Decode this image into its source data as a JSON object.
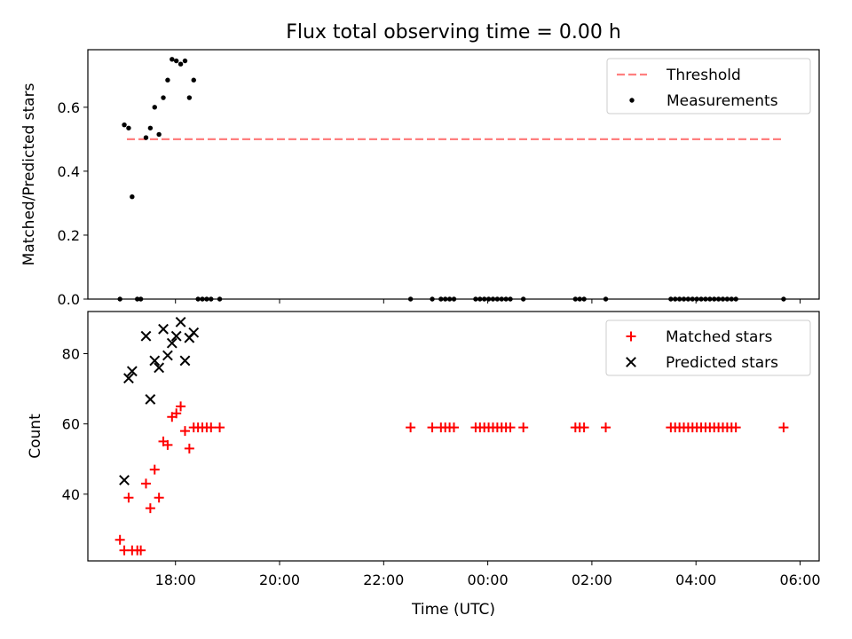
{
  "chart_data": {
    "title": "Flux total observing time = 0.00 h",
    "xlabel": "Time (UTC)",
    "x_unit": "UTC time (HH:MM); values after 24:00 are times on the following day",
    "xlim": [
      "16:19",
      "30:22"
    ],
    "xticks": [
      {
        "value": "18:00",
        "label": "18:00"
      },
      {
        "value": "20:00",
        "label": "20:00"
      },
      {
        "value": "22:00",
        "label": "22:00"
      },
      {
        "value": "24:00",
        "label": "00:00"
      },
      {
        "value": "26:00",
        "label": "02:00"
      },
      {
        "value": "28:00",
        "label": "04:00"
      },
      {
        "value": "30:00",
        "label": "06:00"
      }
    ],
    "panels": [
      {
        "type": "line+scatter",
        "ylabel": "Matched/Predicted stars",
        "ylim": [
          0,
          0.78
        ],
        "yticks": [
          0.0,
          0.2,
          0.4,
          0.6
        ],
        "ytick_labels": [
          "0.0",
          "0.2",
          "0.4",
          "0.6"
        ],
        "legend_position": "upper right",
        "series": [
          {
            "name": "Threshold",
            "kind": "line",
            "style": "dashed",
            "color": "#ff7f7f",
            "points": [
              {
                "x": "17:04",
                "y": 0.5
              },
              {
                "x": "29:38",
                "y": 0.5
              }
            ]
          },
          {
            "name": "Measurements",
            "kind": "scatter",
            "marker": "dot",
            "color": "#000000",
            "points": [
              {
                "x": "16:56",
                "y": 0.0
              },
              {
                "x": "17:01",
                "y": 0.545
              },
              {
                "x": "17:06",
                "y": 0.535
              },
              {
                "x": "17:10",
                "y": 0.32
              },
              {
                "x": "17:16",
                "y": 0.0
              },
              {
                "x": "17:20",
                "y": 0.0
              },
              {
                "x": "17:26",
                "y": 0.505
              },
              {
                "x": "17:31",
                "y": 0.535
              },
              {
                "x": "17:36",
                "y": 0.6
              },
              {
                "x": "17:41",
                "y": 0.515
              },
              {
                "x": "17:46",
                "y": 0.63
              },
              {
                "x": "17:51",
                "y": 0.685
              },
              {
                "x": "17:56",
                "y": 0.75
              },
              {
                "x": "18:01",
                "y": 0.745
              },
              {
                "x": "18:06",
                "y": 0.735
              },
              {
                "x": "18:11",
                "y": 0.745
              },
              {
                "x": "18:16",
                "y": 0.63
              },
              {
                "x": "18:21",
                "y": 0.685
              },
              {
                "x": "18:26",
                "y": 0.0
              },
              {
                "x": "18:31",
                "y": 0.0
              },
              {
                "x": "18:36",
                "y": 0.0
              },
              {
                "x": "18:41",
                "y": 0.0
              },
              {
                "x": "18:51",
                "y": 0.0
              },
              {
                "x": "22:31",
                "y": 0.0
              },
              {
                "x": "22:56",
                "y": 0.0
              },
              {
                "x": "23:06",
                "y": 0.0
              },
              {
                "x": "23:11",
                "y": 0.0
              },
              {
                "x": "23:16",
                "y": 0.0
              },
              {
                "x": "23:21",
                "y": 0.0
              },
              {
                "x": "23:46",
                "y": 0.0
              },
              {
                "x": "23:51",
                "y": 0.0
              },
              {
                "x": "23:56",
                "y": 0.0
              },
              {
                "x": "24:01",
                "y": 0.0
              },
              {
                "x": "24:06",
                "y": 0.0
              },
              {
                "x": "24:11",
                "y": 0.0
              },
              {
                "x": "24:16",
                "y": 0.0
              },
              {
                "x": "24:21",
                "y": 0.0
              },
              {
                "x": "24:26",
                "y": 0.0
              },
              {
                "x": "24:41",
                "y": 0.0
              },
              {
                "x": "25:41",
                "y": 0.0
              },
              {
                "x": "25:46",
                "y": 0.0
              },
              {
                "x": "25:51",
                "y": 0.0
              },
              {
                "x": "26:16",
                "y": 0.0
              },
              {
                "x": "27:31",
                "y": 0.0
              },
              {
                "x": "27:36",
                "y": 0.0
              },
              {
                "x": "27:41",
                "y": 0.0
              },
              {
                "x": "27:46",
                "y": 0.0
              },
              {
                "x": "27:51",
                "y": 0.0
              },
              {
                "x": "27:56",
                "y": 0.0
              },
              {
                "x": "28:01",
                "y": 0.0
              },
              {
                "x": "28:06",
                "y": 0.0
              },
              {
                "x": "28:11",
                "y": 0.0
              },
              {
                "x": "28:16",
                "y": 0.0
              },
              {
                "x": "28:21",
                "y": 0.0
              },
              {
                "x": "28:26",
                "y": 0.0
              },
              {
                "x": "28:31",
                "y": 0.0
              },
              {
                "x": "28:36",
                "y": 0.0
              },
              {
                "x": "28:41",
                "y": 0.0
              },
              {
                "x": "28:46",
                "y": 0.0
              },
              {
                "x": "29:41",
                "y": 0.0
              }
            ]
          }
        ]
      },
      {
        "type": "scatter",
        "ylabel": "Count",
        "ylim": [
          21,
          92
        ],
        "yticks": [
          40,
          60,
          80
        ],
        "ytick_labels": [
          "40",
          "60",
          "80"
        ],
        "legend_position": "upper right",
        "series": [
          {
            "name": "Matched stars",
            "marker": "plus",
            "color": "#ff0000",
            "points": [
              {
                "x": "16:56",
                "y": 27
              },
              {
                "x": "17:01",
                "y": 24
              },
              {
                "x": "17:06",
                "y": 39
              },
              {
                "x": "17:10",
                "y": 24
              },
              {
                "x": "17:16",
                "y": 24
              },
              {
                "x": "17:20",
                "y": 24
              },
              {
                "x": "17:26",
                "y": 43
              },
              {
                "x": "17:31",
                "y": 36
              },
              {
                "x": "17:36",
                "y": 47
              },
              {
                "x": "17:41",
                "y": 39
              },
              {
                "x": "17:46",
                "y": 55
              },
              {
                "x": "17:51",
                "y": 54
              },
              {
                "x": "17:56",
                "y": 62
              },
              {
                "x": "18:01",
                "y": 63
              },
              {
                "x": "18:06",
                "y": 65
              },
              {
                "x": "18:11",
                "y": 58
              },
              {
                "x": "18:16",
                "y": 53
              },
              {
                "x": "18:21",
                "y": 59
              },
              {
                "x": "18:26",
                "y": 59
              },
              {
                "x": "18:31",
                "y": 59
              },
              {
                "x": "18:36",
                "y": 59
              },
              {
                "x": "18:41",
                "y": 59
              },
              {
                "x": "18:51",
                "y": 59
              },
              {
                "x": "22:31",
                "y": 59
              },
              {
                "x": "22:56",
                "y": 59
              },
              {
                "x": "23:06",
                "y": 59
              },
              {
                "x": "23:11",
                "y": 59
              },
              {
                "x": "23:16",
                "y": 59
              },
              {
                "x": "23:21",
                "y": 59
              },
              {
                "x": "23:46",
                "y": 59
              },
              {
                "x": "23:51",
                "y": 59
              },
              {
                "x": "23:56",
                "y": 59
              },
              {
                "x": "24:01",
                "y": 59
              },
              {
                "x": "24:06",
                "y": 59
              },
              {
                "x": "24:11",
                "y": 59
              },
              {
                "x": "24:16",
                "y": 59
              },
              {
                "x": "24:21",
                "y": 59
              },
              {
                "x": "24:26",
                "y": 59
              },
              {
                "x": "24:41",
                "y": 59
              },
              {
                "x": "25:41",
                "y": 59
              },
              {
                "x": "25:46",
                "y": 59
              },
              {
                "x": "25:51",
                "y": 59
              },
              {
                "x": "26:16",
                "y": 59
              },
              {
                "x": "27:31",
                "y": 59
              },
              {
                "x": "27:36",
                "y": 59
              },
              {
                "x": "27:41",
                "y": 59
              },
              {
                "x": "27:46",
                "y": 59
              },
              {
                "x": "27:51",
                "y": 59
              },
              {
                "x": "27:56",
                "y": 59
              },
              {
                "x": "28:01",
                "y": 59
              },
              {
                "x": "28:06",
                "y": 59
              },
              {
                "x": "28:11",
                "y": 59
              },
              {
                "x": "28:16",
                "y": 59
              },
              {
                "x": "28:21",
                "y": 59
              },
              {
                "x": "28:26",
                "y": 59
              },
              {
                "x": "28:31",
                "y": 59
              },
              {
                "x": "28:36",
                "y": 59
              },
              {
                "x": "28:41",
                "y": 59
              },
              {
                "x": "28:46",
                "y": 59
              },
              {
                "x": "29:41",
                "y": 59
              }
            ]
          },
          {
            "name": "Predicted stars",
            "marker": "x",
            "color": "#000000",
            "points": [
              {
                "x": "17:01",
                "y": 44
              },
              {
                "x": "17:06",
                "y": 73
              },
              {
                "x": "17:10",
                "y": 75
              },
              {
                "x": "17:26",
                "y": 85
              },
              {
                "x": "17:31",
                "y": 67
              },
              {
                "x": "17:36",
                "y": 78
              },
              {
                "x": "17:41",
                "y": 76
              },
              {
                "x": "17:46",
                "y": 87
              },
              {
                "x": "17:51",
                "y": 79.5
              },
              {
                "x": "17:56",
                "y": 83
              },
              {
                "x": "18:01",
                "y": 85
              },
              {
                "x": "18:06",
                "y": 89
              },
              {
                "x": "18:11",
                "y": 78
              },
              {
                "x": "18:16",
                "y": 84.5
              },
              {
                "x": "18:21",
                "y": 86
              }
            ]
          }
        ]
      }
    ]
  }
}
